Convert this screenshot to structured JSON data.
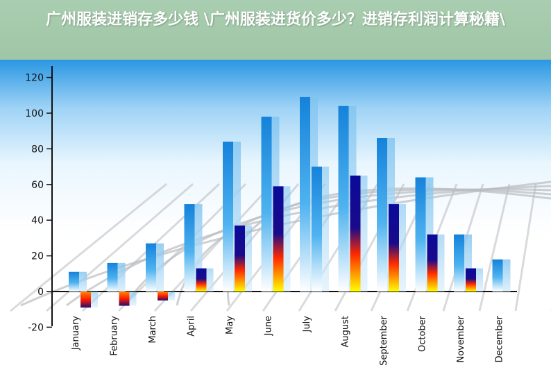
{
  "banner": {
    "title": "广州服装进销存多少钱 \\广州服装进货价多少？进销存利润计算秘籍\\"
  },
  "colors": {
    "banner": "#a9cdb0",
    "sky": "#2a97e3",
    "series_blue": "#1a8de0",
    "series_navy": "#0a0a9a",
    "series_warm_bottom": "#ffff00",
    "series_warm_mid": "#ff2a00"
  },
  "chart_data": {
    "type": "bar",
    "title": "",
    "xlabel": "",
    "ylabel": "",
    "ylim": [
      -20,
      120
    ],
    "yticks": [
      -20,
      0,
      20,
      40,
      60,
      80,
      100,
      120
    ],
    "grid": false,
    "legend": "none",
    "categories": [
      "January",
      "February",
      "March",
      "April",
      "May",
      "June",
      "July",
      "August",
      "September",
      "October",
      "November",
      "December"
    ],
    "series": [
      {
        "values": [
          11,
          16,
          27,
          49,
          84,
          98,
          109,
          104,
          86,
          64,
          32,
          18
        ]
      },
      {
        "values": [
          -9,
          -8,
          -5,
          13,
          37,
          59,
          70,
          65,
          49,
          32,
          13,
          0
        ]
      }
    ]
  }
}
